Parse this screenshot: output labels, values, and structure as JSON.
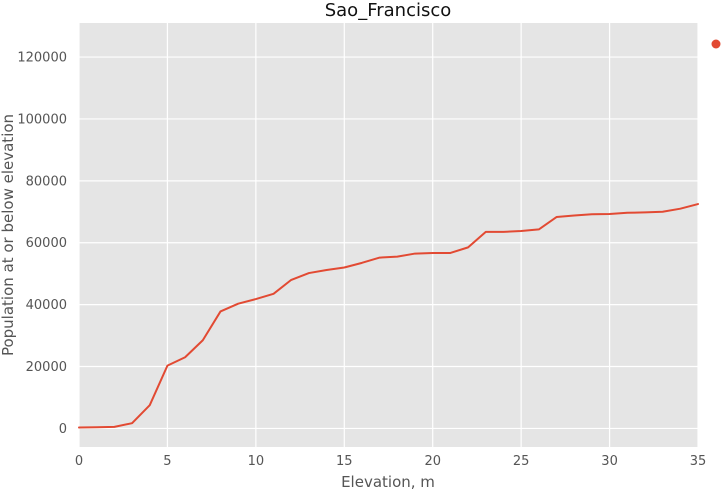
{
  "chart_data": {
    "type": "line",
    "title": "Sao_Francisco",
    "xlabel": "Elevation, m",
    "ylabel": "Population at or below elevation",
    "xlim": [
      0,
      35
    ],
    "ylim": [
      -6000,
      131000
    ],
    "xticks": [
      0,
      5,
      10,
      15,
      20,
      25,
      30,
      35
    ],
    "yticks": [
      0,
      20000,
      40000,
      60000,
      80000,
      100000,
      120000
    ],
    "grid": true,
    "legend": "top-right",
    "series": [
      {
        "color": "#e24a33",
        "x": [
          0,
          1,
          2,
          3,
          4,
          5,
          6,
          7,
          8,
          9,
          10,
          11,
          12,
          13,
          14,
          15,
          16,
          17,
          18,
          19,
          20,
          21,
          22,
          23,
          24,
          25,
          26,
          27,
          28,
          29,
          30,
          31,
          32,
          33,
          34,
          35
        ],
        "y": [
          300,
          400,
          500,
          1700,
          7500,
          20300,
          23000,
          28500,
          37800,
          40300,
          41800,
          43500,
          48000,
          50200,
          51200,
          52000,
          53500,
          55200,
          55500,
          56500,
          56700,
          56700,
          58500,
          63500,
          63500,
          63800,
          64300,
          68300,
          68800,
          69200,
          69300,
          69700,
          69800,
          70000,
          71000,
          72500
        ]
      }
    ]
  }
}
